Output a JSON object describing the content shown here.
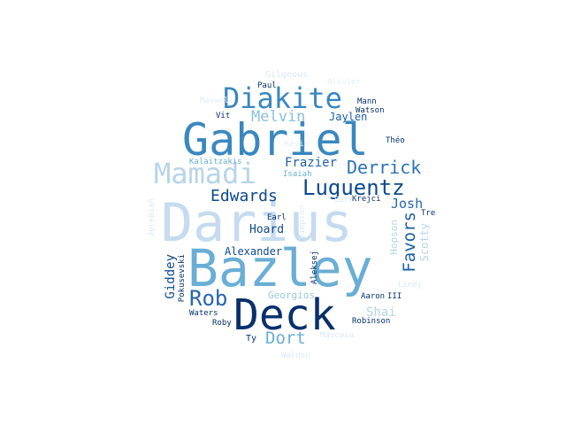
{
  "words": [
    {
      "text": "Darius",
      "color": "#c6dbef"
    },
    {
      "text": "Bazley",
      "color": "#6aaed6"
    },
    {
      "text": "Gabriel",
      "color": "#3a87c0"
    },
    {
      "text": "Deck",
      "color": "#08306b"
    },
    {
      "text": "Diakite",
      "color": "#3a87c0"
    },
    {
      "text": "Mamadi",
      "color": "#b7d4ea"
    },
    {
      "text": "Luguentz",
      "color": "#0d4a90"
    },
    {
      "text": "Rob",
      "color": "#2767ac"
    },
    {
      "text": "Derrick",
      "color": "#2d73b5"
    },
    {
      "text": "Edwards",
      "color": "#0d4a90"
    },
    {
      "text": "Favors",
      "color": "#1f5fa8"
    },
    {
      "text": "Melvin",
      "color": "#8bbfdd"
    },
    {
      "text": "Dort",
      "color": "#6aaed6"
    },
    {
      "text": "Frazier",
      "color": "#1f5fa8"
    },
    {
      "text": "Josh",
      "color": "#2767ac"
    },
    {
      "text": "Jaylen",
      "color": "#1f5fa8"
    },
    {
      "text": "Giddey",
      "color": "#0d4a90"
    },
    {
      "text": "Hoard",
      "color": "#0d4a90"
    },
    {
      "text": "Alexander",
      "color": "#0d4a90"
    },
    {
      "text": "Shai",
      "color": "#b7d4ea"
    },
    {
      "text": "Scotty",
      "color": "#b7d4ea"
    },
    {
      "text": "Hopson",
      "color": "#b7d4ea"
    },
    {
      "text": "Georgios",
      "color": "#9ac8e0"
    },
    {
      "text": "Pokusevski",
      "color": "#08306b"
    },
    {
      "text": "Aleksej",
      "color": "#08306b"
    },
    {
      "text": "Kalaitzakis",
      "color": "#6aaed6"
    },
    {
      "text": "Isaiah",
      "color": "#6aaed6"
    },
    {
      "text": "Mann",
      "color": "#08306b"
    },
    {
      "text": "Watson",
      "color": "#08306b"
    },
    {
      "text": "Vit",
      "color": "#08306b"
    },
    {
      "text": "Paul",
      "color": "#08306b"
    },
    {
      "text": "Théo",
      "color": "#08306b"
    },
    {
      "text": "Krejci",
      "color": "#08306b"
    },
    {
      "text": "Earl",
      "color": "#08306b"
    },
    {
      "text": "Tre",
      "color": "#08306b"
    },
    {
      "text": "Aaron",
      "color": "#08306b"
    },
    {
      "text": "III",
      "color": "#08306b"
    },
    {
      "text": "Robinson",
      "color": "#08306b"
    },
    {
      "text": "Roby",
      "color": "#08306b"
    },
    {
      "text": "Waters",
      "color": "#08306b"
    },
    {
      "text": "Ty",
      "color": "#08306b"
    },
    {
      "text": "Gilgeous",
      "color": "#dbe9f6"
    },
    {
      "text": "Olivier",
      "color": "#e3eef9"
    },
    {
      "text": "Jeremiah",
      "color": "#dbe9f6"
    },
    {
      "text": "Simpson",
      "color": "#dbe9f6"
    },
    {
      "text": "Sarr",
      "color": "#dbe9f6"
    },
    {
      "text": "Lindy",
      "color": "#dbe9f6"
    },
    {
      "text": "Waldon",
      "color": "#dbe9f6"
    },
    {
      "text": "Mascaia",
      "color": "#dbe9f6"
    },
    {
      "text": "Maxwell",
      "color": "#e3eef9"
    },
    {
      "text": "Kevin",
      "color": "#e3eef9"
    }
  ]
}
